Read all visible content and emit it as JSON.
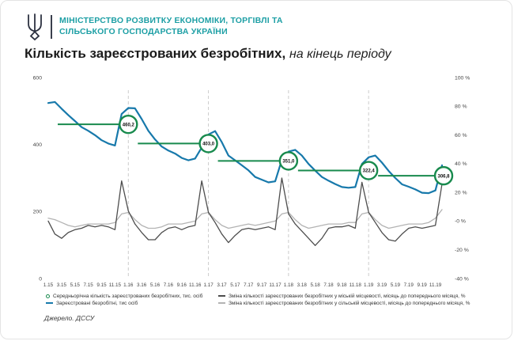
{
  "header": {
    "line1": "МІНІСТЕРСТВО РОЗВИТКУ ЕКОНОМІКИ, ТОРГІВЛІ ТА",
    "line2": "СІЛЬСЬКОГО ГОСПОДАРСТВА УКРАЇНИ",
    "brand_color": "#1d9fa5"
  },
  "title": {
    "main": "Кількість зареєстрованих безробітних,",
    "suffix": "на кінець періоду"
  },
  "source": "Джерело. ДССУ",
  "legend": {
    "items": [
      {
        "label": "Середньорічна кількість зареєстрованих безробітних, тис. осіб",
        "marker": "circle",
        "color": "#188a4d"
      },
      {
        "label": "Зареєстровані безробітні, тис осіб",
        "marker": "dash",
        "color": "#1779ab"
      },
      {
        "label": "Зміна кількості зареєстрованих безробітних у міській місцевості, місяць до попереднього місяця, %",
        "marker": "dash",
        "color": "#4d4d4d"
      },
      {
        "label": "Зміна кількості зареєстрованих безробітних у сільській місцевості, місяць до попереднього місяця, %",
        "marker": "dash",
        "color": "#b3b3b3"
      }
    ]
  },
  "chart_data": {
    "type": "line",
    "title": "Кількість зареєстрованих безробітних, на кінець періоду",
    "x_tick_labels": [
      "1.15",
      "3.15",
      "5.15",
      "7.15",
      "9.15",
      "11.15",
      "1.16",
      "3.16",
      "5.16",
      "7.16",
      "9.16",
      "11.16",
      "1.17",
      "3.17",
      "5.17",
      "7.17",
      "9.17",
      "11.17",
      "1.18",
      "3.18",
      "5.18",
      "7.18",
      "9.18",
      "11.18",
      "1.19",
      "3.19",
      "5.19",
      "7.19",
      "9.19",
      "11.19"
    ],
    "left_axis": {
      "ticks": [
        600,
        400,
        200,
        0
      ],
      "range": [
        0,
        600
      ]
    },
    "right_axis": {
      "ticks": [
        100,
        80,
        60,
        40,
        20,
        0,
        -20,
        -40
      ],
      "tick_labels": [
        "100 %",
        "80 %",
        "60 %",
        "40 %",
        "20 %",
        "-0 %",
        "-20 %",
        "-40 %"
      ],
      "range": [
        -40,
        100
      ]
    },
    "year_boundaries_months": [
      12,
      24,
      36,
      48
    ],
    "series": [
      {
        "name": "Зареєстровані безробітні, тис осіб",
        "axis": "left",
        "color": "#1779ab",
        "width": 2.2,
        "values": [
          524,
          527,
          507,
          488,
          470,
          452,
          441,
          428,
          413,
          403,
          397,
          491,
          509,
          508,
          476,
          441,
          415,
          394,
          382,
          373,
          360,
          353,
          358,
          391,
          430,
          440,
          407,
          367,
          353,
          338,
          323,
          303,
          295,
          287,
          290,
          354,
          379,
          384,
          367,
          342,
          322,
          303,
          292,
          282,
          273,
          271,
          273,
          342,
          362,
          367,
          346,
          321,
          300,
          281,
          274,
          266,
          256,
          255,
          263,
          338
        ]
      },
      {
        "name": "Зміна кількості зареєстрованих безробітних у міській місцевості, місяць до попереднього місяця, %",
        "axis": "right",
        "color": "#4d4d4d",
        "width": 1.3,
        "values": [
          0,
          -9,
          -12,
          -8,
          -6,
          -5,
          -3,
          -4,
          -3,
          -4,
          -6,
          28,
          7,
          -2,
          -8,
          -13,
          -13,
          -8,
          -5,
          -4,
          -6,
          -4,
          -3,
          28,
          6,
          -1,
          -9,
          -15,
          -10,
          -6,
          -5,
          -6,
          -5,
          -4,
          -6,
          30,
          5,
          -2,
          -7,
          -12,
          -17,
          -12,
          -5,
          -4,
          -4,
          -3,
          -5,
          27,
          6,
          -1,
          -8,
          -13,
          -14,
          -9,
          -5,
          -4,
          -5,
          -4,
          -3,
          26
        ]
      },
      {
        "name": "Зміна кількості зареєстрованих безробітних у сільській місцевості, місяць до попереднього місяця, %",
        "axis": "right",
        "color": "#b3b3b3",
        "width": 1.3,
        "values": [
          2,
          1,
          -1,
          -3,
          -4,
          -3,
          -2,
          -2,
          -2,
          -2,
          -1,
          5,
          6,
          1,
          -3,
          -5,
          -5,
          -4,
          -2,
          -2,
          -2,
          -1,
          0,
          5,
          6,
          1,
          -3,
          -5,
          -4,
          -3,
          -2,
          -3,
          -2,
          -1,
          0,
          5,
          6,
          1,
          -3,
          -5,
          -4,
          -3,
          -2,
          -2,
          -2,
          -1,
          -1,
          5,
          6,
          1,
          -3,
          -5,
          -4,
          -3,
          -2,
          -2,
          -2,
          -1,
          2,
          8
        ]
      }
    ],
    "annual_averages": [
      {
        "year": 2015,
        "value": 460.2,
        "label": "460,2"
      },
      {
        "year": 2016,
        "value": 403.0,
        "label": "403,0"
      },
      {
        "year": 2017,
        "value": 351.0,
        "label": "351,0"
      },
      {
        "year": 2018,
        "value": 322.4,
        "label": "322,4"
      },
      {
        "year": 2019,
        "value": 306.8,
        "label": "306,8"
      }
    ],
    "colors": {
      "average_green": "#188a4d",
      "grid_dash": "#cccccc"
    }
  }
}
